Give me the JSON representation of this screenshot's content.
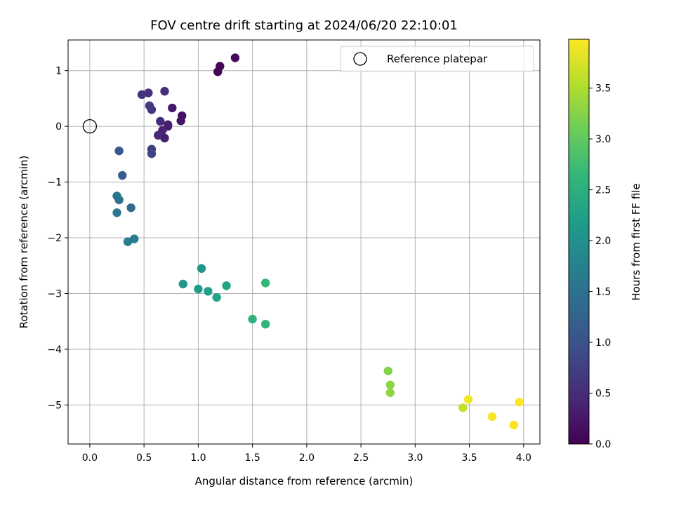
{
  "chart_data": {
    "type": "scatter",
    "title": "FOV centre drift starting at 2024/06/20 22:10:01",
    "xlabel": "Angular distance from reference (arcmin)",
    "ylabel": "Rotation from reference (arcmin)",
    "xlim": [
      -0.2,
      4.15
    ],
    "ylim": [
      -5.7,
      1.55
    ],
    "xticks": [
      0.0,
      0.5,
      1.0,
      1.5,
      2.0,
      2.5,
      3.0,
      3.5,
      4.0
    ],
    "xtick_labels": [
      "0.0",
      "0.5",
      "1.0",
      "1.5",
      "2.0",
      "2.5",
      "3.0",
      "3.5",
      "4.0"
    ],
    "yticks": [
      1,
      0,
      -1,
      -2,
      -3,
      -4,
      -5
    ],
    "ytick_labels": [
      "1",
      "0",
      "−1",
      "−2",
      "−3",
      "−4",
      "−5"
    ],
    "grid": true,
    "legend": {
      "position": "upper right",
      "entries": [
        "Reference platepar"
      ]
    },
    "reference_point": {
      "x": 0.0,
      "y": 0.0,
      "label": "Reference platepar"
    },
    "colorbar": {
      "label": "Hours from first FF file",
      "range": [
        0.0,
        3.98
      ],
      "ticks": [
        0.0,
        0.5,
        1.0,
        1.5,
        2.0,
        2.5,
        3.0,
        3.5
      ],
      "tick_labels": [
        "0.0",
        "0.5",
        "1.0",
        "1.5",
        "2.0",
        "2.5",
        "3.0",
        "3.5"
      ],
      "colormap": "viridis"
    },
    "points": [
      {
        "x": 1.18,
        "y": 0.98,
        "c": 0.02
      },
      {
        "x": 1.2,
        "y": 1.08,
        "c": 0.06
      },
      {
        "x": 1.34,
        "y": 1.23,
        "c": 0.11
      },
      {
        "x": 0.85,
        "y": 0.19,
        "c": 0.18
      },
      {
        "x": 0.84,
        "y": 0.1,
        "c": 0.22
      },
      {
        "x": 0.76,
        "y": 0.33,
        "c": 0.26
      },
      {
        "x": 0.72,
        "y": 0.0,
        "c": 0.3
      },
      {
        "x": 0.72,
        "y": 0.03,
        "c": 0.33
      },
      {
        "x": 0.69,
        "y": -0.21,
        "c": 0.37
      },
      {
        "x": 0.67,
        "y": -0.07,
        "c": 0.4
      },
      {
        "x": 0.63,
        "y": -0.16,
        "c": 0.44
      },
      {
        "x": 0.65,
        "y": 0.09,
        "c": 0.48
      },
      {
        "x": 0.69,
        "y": 0.63,
        "c": 0.52
      },
      {
        "x": 0.54,
        "y": 0.6,
        "c": 0.56
      },
      {
        "x": 0.48,
        "y": 0.57,
        "c": 0.6
      },
      {
        "x": 0.57,
        "y": 0.3,
        "c": 0.64
      },
      {
        "x": 0.55,
        "y": 0.37,
        "c": 0.68
      },
      {
        "x": 0.57,
        "y": -0.41,
        "c": 0.74
      },
      {
        "x": 0.57,
        "y": -0.49,
        "c": 0.8
      },
      {
        "x": 0.27,
        "y": -0.44,
        "c": 1.08
      },
      {
        "x": 0.3,
        "y": -0.88,
        "c": 1.18
      },
      {
        "x": 0.38,
        "y": -1.46,
        "c": 1.4
      },
      {
        "x": 0.27,
        "y": -1.32,
        "c": 1.5
      },
      {
        "x": 0.25,
        "y": -1.25,
        "c": 1.55
      },
      {
        "x": 0.25,
        "y": -1.55,
        "c": 1.6
      },
      {
        "x": 0.41,
        "y": -2.02,
        "c": 1.68
      },
      {
        "x": 0.35,
        "y": -2.07,
        "c": 1.72
      },
      {
        "x": 1.03,
        "y": -2.55,
        "c": 2.05
      },
      {
        "x": 0.86,
        "y": -2.83,
        "c": 2.12
      },
      {
        "x": 1.0,
        "y": -2.92,
        "c": 2.18
      },
      {
        "x": 1.09,
        "y": -2.96,
        "c": 2.24
      },
      {
        "x": 1.17,
        "y": -3.07,
        "c": 2.28
      },
      {
        "x": 1.26,
        "y": -2.86,
        "c": 2.32
      },
      {
        "x": 1.5,
        "y": -3.46,
        "c": 2.56
      },
      {
        "x": 1.62,
        "y": -3.55,
        "c": 2.6
      },
      {
        "x": 1.62,
        "y": -2.81,
        "c": 2.64
      },
      {
        "x": 2.75,
        "y": -4.39,
        "c": 3.24
      },
      {
        "x": 2.77,
        "y": -4.64,
        "c": 3.28
      },
      {
        "x": 2.77,
        "y": -4.78,
        "c": 3.32
      },
      {
        "x": 3.44,
        "y": -5.05,
        "c": 3.62
      },
      {
        "x": 3.49,
        "y": -4.9,
        "c": 3.9
      },
      {
        "x": 3.71,
        "y": -5.21,
        "c": 3.93
      },
      {
        "x": 3.91,
        "y": -5.36,
        "c": 3.95
      },
      {
        "x": 3.96,
        "y": -4.95,
        "c": 3.97
      }
    ]
  }
}
